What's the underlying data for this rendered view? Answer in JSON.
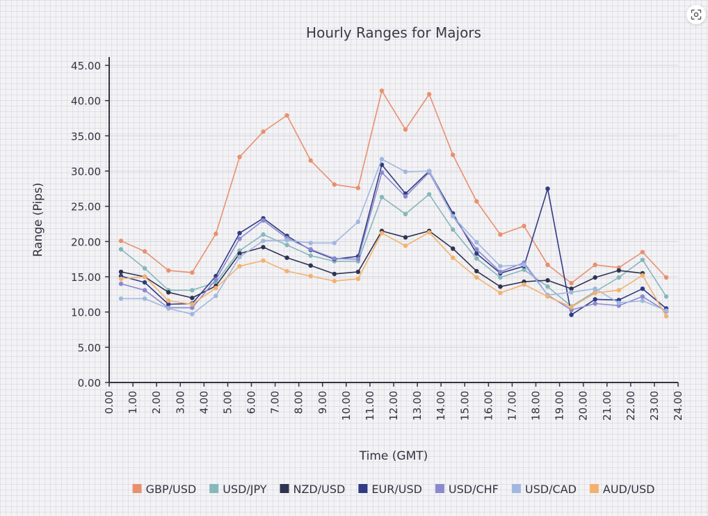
{
  "chart_data": {
    "type": "line",
    "title": "Hourly Ranges for Majors",
    "xlabel": "Time (GMT)",
    "ylabel": "Range (Pips)",
    "ylim": [
      0,
      45
    ],
    "xlim": [
      0,
      24
    ],
    "y_ticks": [
      "0.00",
      "5.00",
      "10.00",
      "15.00",
      "20.00",
      "25.00",
      "30.00",
      "35.00",
      "40.00",
      "45.00"
    ],
    "x_ticks": [
      "0.00",
      "1.00",
      "2.00",
      "3.00",
      "4.00",
      "5.00",
      "6.00",
      "7.00",
      "8.00",
      "9.00",
      "10.00",
      "11.00",
      "12.00",
      "13.00",
      "14.00",
      "15.00",
      "16.00",
      "17.00",
      "18.00",
      "19.00",
      "20.00",
      "21.00",
      "22.00",
      "23.00",
      "24.00"
    ],
    "grid": "horizontal",
    "legend_position": "bottom",
    "x": [
      0.5,
      1.5,
      2.5,
      3.5,
      4.5,
      5.5,
      6.5,
      7.5,
      8.5,
      9.5,
      10.5,
      11.5,
      12.5,
      13.5,
      14.5,
      15.5,
      16.5,
      17.5,
      18.5,
      19.5,
      20.5,
      21.5,
      22.5,
      23.5
    ],
    "series": [
      {
        "name": "GBP/USD",
        "color": "#e8906e",
        "values": [
          20.1,
          18.6,
          15.9,
          15.6,
          21.1,
          32.0,
          35.6,
          37.9,
          31.5,
          28.1,
          27.6,
          41.4,
          35.9,
          40.9,
          32.3,
          25.7,
          21.0,
          22.2,
          16.7,
          14.1,
          16.7,
          16.3,
          18.5,
          14.9
        ]
      },
      {
        "name": "USD/JPY",
        "color": "#85b7bb",
        "values": [
          18.9,
          16.2,
          13.1,
          13.1,
          14.2,
          18.7,
          21.0,
          19.5,
          18.0,
          17.2,
          17.2,
          26.3,
          23.9,
          26.7,
          21.7,
          17.6,
          14.9,
          16.0,
          13.6,
          10.8,
          12.9,
          14.9,
          17.4,
          12.2
        ]
      },
      {
        "name": "NZD/USD",
        "color": "#2e3350",
        "values": [
          15.7,
          15.0,
          12.8,
          12.0,
          13.7,
          18.3,
          19.2,
          17.7,
          16.6,
          15.4,
          15.7,
          21.5,
          20.6,
          21.5,
          19.0,
          15.8,
          13.6,
          14.3,
          14.5,
          13.3,
          14.9,
          15.9,
          15.5,
          null
        ]
      },
      {
        "name": "EUR/USD",
        "color": "#303b84",
        "values": [
          15.1,
          14.2,
          11.1,
          11.2,
          15.1,
          21.2,
          23.3,
          20.8,
          18.8,
          17.5,
          17.9,
          30.9,
          26.8,
          30.0,
          24.0,
          18.3,
          15.5,
          16.5,
          27.5,
          9.6,
          11.8,
          11.7,
          13.3,
          10.5
        ]
      },
      {
        "name": "USD/CHF",
        "color": "#8a89d0",
        "values": [
          14.0,
          13.1,
          10.6,
          10.6,
          14.6,
          20.4,
          23.0,
          20.5,
          18.9,
          17.6,
          17.5,
          29.8,
          26.4,
          29.8,
          23.6,
          18.9,
          15.7,
          17.0,
          12.4,
          10.3,
          11.2,
          10.9,
          12.2,
          10.1
        ]
      },
      {
        "name": "USD/CAD",
        "color": "#a0b7e0",
        "values": [
          11.9,
          11.9,
          10.5,
          9.7,
          12.3,
          17.8,
          20.1,
          20.2,
          19.8,
          19.8,
          22.8,
          31.7,
          29.9,
          30.0,
          23.6,
          19.9,
          16.5,
          16.7,
          12.4,
          12.8,
          13.3,
          11.3,
          11.6,
          10.2
        ]
      },
      {
        "name": "AUD/USD",
        "color": "#f2b26d",
        "values": [
          14.7,
          15.0,
          11.6,
          11.1,
          13.4,
          16.5,
          17.3,
          15.8,
          15.1,
          14.4,
          14.7,
          21.2,
          19.4,
          21.3,
          17.7,
          14.9,
          12.7,
          13.9,
          12.2,
          10.7,
          12.7,
          13.1,
          15.2,
          9.4
        ]
      }
    ]
  }
}
